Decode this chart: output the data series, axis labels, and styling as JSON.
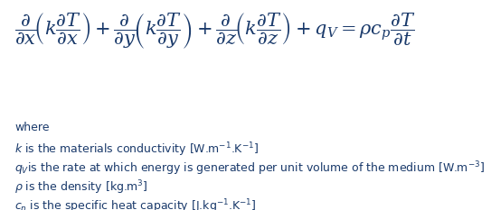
{
  "background_color": "#ffffff",
  "text_color": "#1a3a6b",
  "main_equation": "$\\dfrac{\\partial}{\\partial x}\\!\\left(k\\dfrac{\\partial T}{\\partial x}\\right) + \\dfrac{\\partial}{\\partial y}\\!\\left(k\\dfrac{\\partial T}{\\partial y}\\right) + \\dfrac{\\partial}{\\partial z}\\!\\left(k\\dfrac{\\partial T}{\\partial z}\\right) + q_V = \\rho c_p \\dfrac{\\partial T}{\\partial t}$",
  "where_text": "where",
  "line1_a": "$k$",
  "line1_b": " is the materials conductivity [W.m",
  "line1_sup1": "-1",
  "line1_c": ".K",
  "line1_sup2": "-1",
  "line1_d": "]",
  "line2_a": "$q_V$",
  "line2_b": "is the rate at which energy is generated per unit volume of the medium [W.m",
  "line2_sup": "-3",
  "line2_c": "]",
  "line3_a": "$\\rho$",
  "line3_b": " is the density [kg.m",
  "line3_sup": "3",
  "line3_c": "]",
  "line4_a": "$c_p$",
  "line4_b": " is the specific heat capacity [J.kg",
  "line4_sup1": "-1",
  "line4_c": ".K",
  "line4_sup2": "-1",
  "line4_d": "]",
  "eq_fontsize": 15,
  "text_fontsize": 9,
  "figsize": [
    5.43,
    2.33
  ],
  "dpi": 100
}
